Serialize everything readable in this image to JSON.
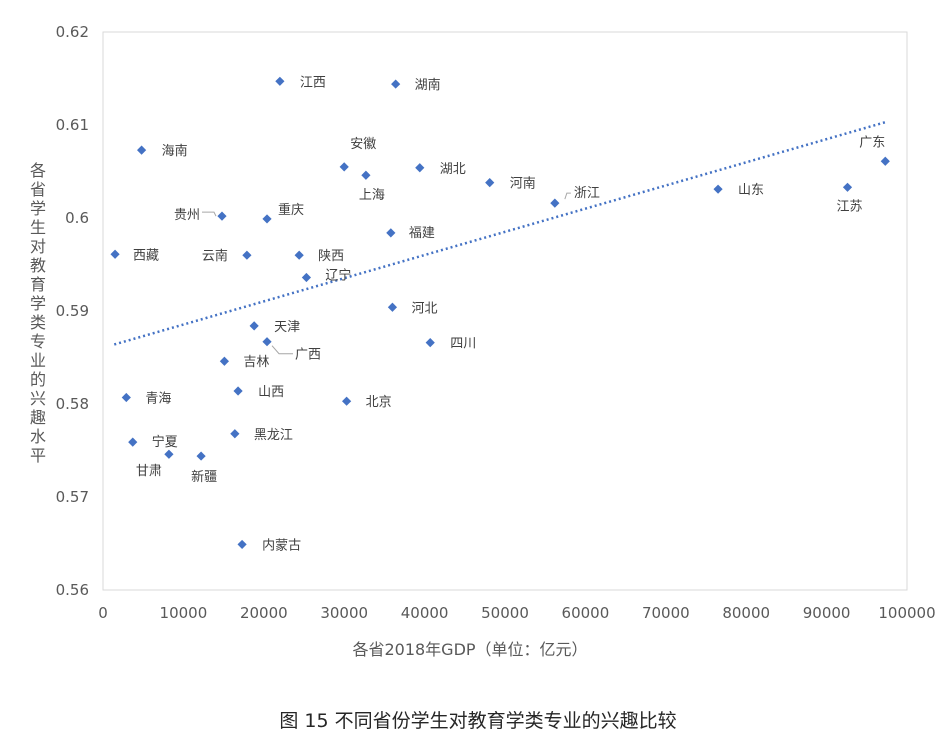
{
  "chart_data": {
    "type": "scatter",
    "caption": "图 15 不同省份学生对教育学类专业的兴趣比较",
    "xlabel": "各省2018年GDP（单位：亿元）",
    "ylabel": "各省学生对教育学类专业的兴趣水平",
    "xlim": [
      0,
      100000
    ],
    "ylim": [
      0.56,
      0.62
    ],
    "xticks": [
      0,
      10000,
      20000,
      30000,
      40000,
      50000,
      60000,
      70000,
      80000,
      90000,
      100000
    ],
    "yticks": [
      0.56,
      0.57,
      0.58,
      0.59,
      0.6,
      0.61,
      0.62
    ],
    "ytick_labels": [
      "0.56",
      "0.57",
      "0.58",
      "0.59",
      "0.6",
      "0.61",
      "0.62"
    ],
    "grid": false,
    "legend": "none",
    "marker_color": "#4472C4",
    "trendline": {
      "type": "linear",
      "style": "dotted",
      "color": "#4472C4",
      "x": [
        1400,
        97300
      ],
      "y": [
        0.5864,
        0.6103
      ]
    },
    "points": [
      {
        "name": "江西",
        "x": 22000,
        "y": 0.6147
      },
      {
        "name": "湖南",
        "x": 36400,
        "y": 0.6144
      },
      {
        "name": "海南",
        "x": 4800,
        "y": 0.6073
      },
      {
        "name": "安徽",
        "x": 30000,
        "y": 0.6055
      },
      {
        "name": "上海",
        "x": 32700,
        "y": 0.6046
      },
      {
        "name": "湖北",
        "x": 39400,
        "y": 0.6054
      },
      {
        "name": "河南",
        "x": 48100,
        "y": 0.6038
      },
      {
        "name": "广东",
        "x": 97300,
        "y": 0.6061
      },
      {
        "name": "山东",
        "x": 76500,
        "y": 0.6031
      },
      {
        "name": "江苏",
        "x": 92600,
        "y": 0.6033
      },
      {
        "name": "浙江",
        "x": 56200,
        "y": 0.6016
      },
      {
        "name": "贵州",
        "x": 14800,
        "y": 0.6002
      },
      {
        "name": "重庆",
        "x": 20400,
        "y": 0.5999
      },
      {
        "name": "福建",
        "x": 35800,
        "y": 0.5984
      },
      {
        "name": "西藏",
        "x": 1500,
        "y": 0.5961
      },
      {
        "name": "云南",
        "x": 17900,
        "y": 0.596
      },
      {
        "name": "陕西",
        "x": 24400,
        "y": 0.596
      },
      {
        "name": "辽宁",
        "x": 25300,
        "y": 0.5936
      },
      {
        "name": "河北",
        "x": 36000,
        "y": 0.5904
      },
      {
        "name": "天津",
        "x": 18800,
        "y": 0.5884
      },
      {
        "name": "广西",
        "x": 20400,
        "y": 0.5867
      },
      {
        "name": "四川",
        "x": 40700,
        "y": 0.5866
      },
      {
        "name": "吉林",
        "x": 15100,
        "y": 0.5846
      },
      {
        "name": "山西",
        "x": 16800,
        "y": 0.5814
      },
      {
        "name": "青海",
        "x": 2900,
        "y": 0.5807
      },
      {
        "name": "北京",
        "x": 30300,
        "y": 0.5803
      },
      {
        "name": "黑龙江",
        "x": 16400,
        "y": 0.5768
      },
      {
        "name": "宁夏",
        "x": 3700,
        "y": 0.5759
      },
      {
        "name": "甘肃",
        "x": 8200,
        "y": 0.5746
      },
      {
        "name": "新疆",
        "x": 12200,
        "y": 0.5744
      },
      {
        "name": "内蒙古",
        "x": 17300,
        "y": 0.5649
      }
    ]
  }
}
